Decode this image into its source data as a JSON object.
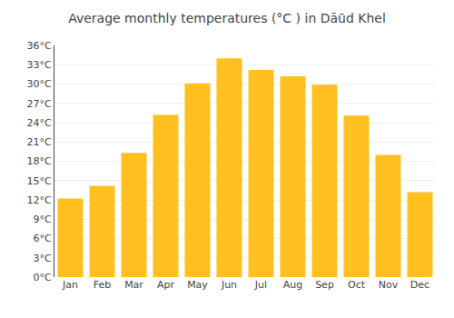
{
  "chart_data": {
    "type": "bar",
    "title": "Average monthly temperatures (°C ) in Dāūd Khel",
    "categories": [
      "Jan",
      "Feb",
      "Mar",
      "Apr",
      "May",
      "Jun",
      "Jul",
      "Aug",
      "Sep",
      "Oct",
      "Nov",
      "Dec"
    ],
    "values": [
      12.2,
      14.2,
      19.3,
      25.2,
      30.1,
      34.0,
      32.2,
      31.2,
      29.9,
      25.1,
      19.0,
      13.2
    ],
    "color": "#FFC020",
    "ylim": [
      0,
      36
    ],
    "yticks": [
      {
        "value": 0,
        "label": "0°C"
      },
      {
        "value": 3,
        "label": "3°C"
      },
      {
        "value": 6,
        "label": "6°C"
      },
      {
        "value": 9,
        "label": "9°C"
      },
      {
        "value": 12,
        "label": "12°C"
      },
      {
        "value": 15,
        "label": "15°C"
      },
      {
        "value": 18,
        "label": "18°C"
      },
      {
        "value": 21,
        "label": "21°C"
      },
      {
        "value": 24,
        "label": "24°C"
      },
      {
        "value": 27,
        "label": "27°C"
      },
      {
        "value": 30,
        "label": "30°C"
      },
      {
        "value": 33,
        "label": "33°C"
      },
      {
        "value": 36,
        "label": "36°C"
      }
    ],
    "grid": true
  }
}
